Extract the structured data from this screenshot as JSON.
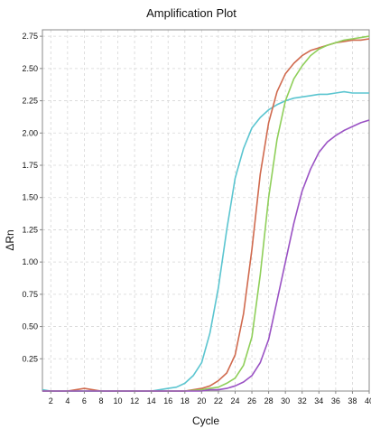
{
  "chart_data": {
    "type": "line",
    "title": "Amplification Plot",
    "xlabel": "Cycle",
    "ylabel": "ΔRn",
    "xlim": [
      1,
      40
    ],
    "ylim": [
      0,
      2.8
    ],
    "xticks": [
      2,
      4,
      6,
      8,
      10,
      12,
      14,
      16,
      18,
      20,
      22,
      24,
      26,
      28,
      30,
      32,
      34,
      36,
      38,
      40
    ],
    "yticks": [
      0.25,
      0.5,
      0.75,
      1.0,
      1.25,
      1.5,
      1.75,
      2.0,
      2.25,
      2.5,
      2.75
    ],
    "ytick_labels": [
      "0.25",
      "0.50",
      "0.75",
      "1.00",
      "1.25",
      "1.50",
      "1.75",
      "2.00",
      "2.25",
      "2.50",
      "2.75"
    ],
    "grid": true,
    "series": [
      {
        "color": "#5bc5d0",
        "x": [
          1,
          2,
          4,
          6,
          8,
          10,
          12,
          14,
          15,
          16,
          17,
          18,
          19,
          20,
          21,
          22,
          23,
          24,
          25,
          26,
          27,
          28,
          29,
          30,
          31,
          32,
          33,
          34,
          35,
          36,
          37,
          38,
          39,
          40
        ],
        "y": [
          0.01,
          0.0,
          0.0,
          0.0,
          0.0,
          0.0,
          0.0,
          0.0,
          0.01,
          0.02,
          0.03,
          0.06,
          0.12,
          0.22,
          0.45,
          0.8,
          1.25,
          1.65,
          1.88,
          2.04,
          2.12,
          2.18,
          2.22,
          2.25,
          2.27,
          2.28,
          2.29,
          2.3,
          2.3,
          2.31,
          2.32,
          2.31,
          2.31,
          2.31
        ]
      },
      {
        "color": "#d06a4e",
        "x": [
          1,
          2,
          4,
          5,
          6,
          7,
          8,
          10,
          12,
          14,
          16,
          18,
          19,
          20,
          21,
          22,
          23,
          24,
          25,
          26,
          27,
          28,
          29,
          30,
          31,
          32,
          33,
          34,
          35,
          36,
          37,
          38,
          39,
          40
        ],
        "y": [
          0.0,
          0.0,
          0.0,
          0.01,
          0.02,
          0.01,
          0.0,
          0.0,
          0.0,
          0.0,
          0.0,
          0.0,
          0.01,
          0.02,
          0.04,
          0.08,
          0.14,
          0.28,
          0.6,
          1.1,
          1.68,
          2.08,
          2.32,
          2.46,
          2.54,
          2.6,
          2.64,
          2.66,
          2.68,
          2.7,
          2.71,
          2.72,
          2.72,
          2.73
        ]
      },
      {
        "color": "#8fcf5a",
        "x": [
          1,
          10,
          16,
          18,
          20,
          21,
          22,
          23,
          24,
          25,
          26,
          27,
          28,
          29,
          30,
          31,
          32,
          33,
          34,
          35,
          36,
          37,
          38,
          39,
          40
        ],
        "y": [
          0.0,
          0.0,
          0.0,
          0.0,
          0.01,
          0.02,
          0.03,
          0.06,
          0.1,
          0.2,
          0.42,
          0.9,
          1.5,
          1.95,
          2.25,
          2.42,
          2.52,
          2.6,
          2.65,
          2.68,
          2.7,
          2.72,
          2.73,
          2.74,
          2.75
        ]
      },
      {
        "color": "#9a52c4",
        "x": [
          1,
          10,
          16,
          18,
          20,
          21,
          22,
          23,
          24,
          25,
          26,
          27,
          28,
          29,
          30,
          31,
          32,
          33,
          34,
          35,
          36,
          37,
          38,
          39,
          40
        ],
        "y": [
          0.0,
          0.0,
          0.0,
          0.0,
          0.0,
          0.01,
          0.01,
          0.02,
          0.04,
          0.07,
          0.12,
          0.22,
          0.4,
          0.7,
          1.0,
          1.3,
          1.55,
          1.72,
          1.85,
          1.93,
          1.98,
          2.02,
          2.05,
          2.08,
          2.1
        ]
      }
    ]
  }
}
